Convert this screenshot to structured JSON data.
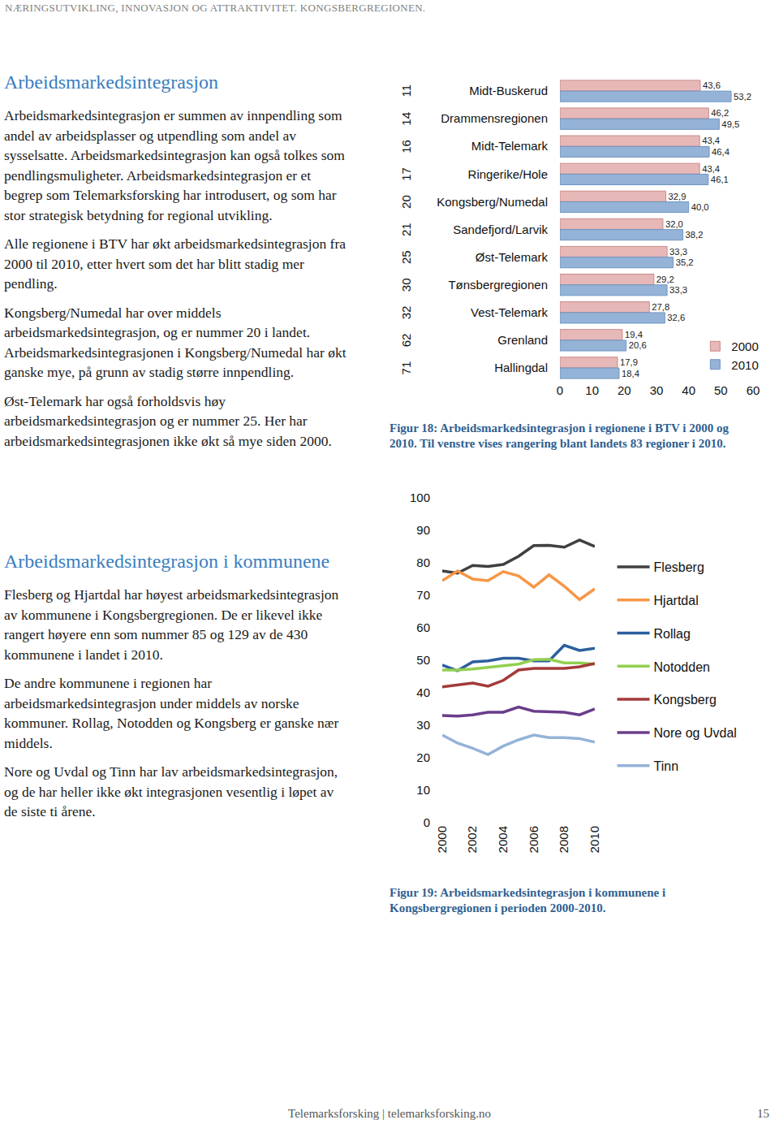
{
  "header": "NÆRINGSUTVIKLING, INNOVASJON OG ATTRAKTIVITET. KONGSBERGREGIONEN.",
  "sections": [
    {
      "heading": "Arbeidsmarkedsintegrasjon",
      "paragraphs": [
        "Arbeidsmarkedsintegrasjon er summen av innpendling som andel av arbeidsplasser og utpendling som andel av sysselsatte. Arbeidsmarkedsintegrasjon kan også tolkes som pendlingsmuligheter. Arbeidsmarkedsintegrasjon er et begrep som Telemarksforsking har introdusert, og som har stor strategisk betydning for regional utvikling.",
        "Alle regionene i BTV har økt arbeidsmarkedsintegrasjon fra 2000 til 2010, etter hvert som det har blitt stadig mer pendling.",
        "Kongsberg/Numedal har over middels arbeidsmarkedsintegrasjon, og er nummer 20 i landet. Arbeidsmarkedsintegrasjonen i Kongsberg/Numedal har økt ganske mye, på grunn av stadig større innpendling.",
        "Øst-Telemark har også forholdsvis høy arbeidsmarkedsintegrasjon og er nummer 25. Her har arbeidsmarkedsintegrasjonen ikke økt så mye siden 2000."
      ]
    },
    {
      "heading": "Arbeidsmarkedsintegrasjon i kommunene",
      "paragraphs": [
        "Flesberg og Hjartdal har høyest arbeidsmarkedsintegrasjon av kommunene i Kongsbergregionen. De er likevel ikke rangert høyere enn som nummer 85 og 129 av de 430 kommunene i landet i 2010.",
        "De andre kommunene i regionen har arbeidsmarkedsintegrasjon under middels av norske kommuner. Rollag, Notodden og Kongsberg er ganske nær middels.",
        "Nore og Uvdal og Tinn har lav arbeidsmarkedsintegrasjon, og de har heller ikke økt integrasjonen vesentlig i løpet av de siste ti årene."
      ]
    }
  ],
  "chart_data": [
    {
      "type": "bar",
      "orientation": "horizontal",
      "categories": [
        "Midt-Buskerud",
        "Drammensregionen",
        "Midt-Telemark",
        "Ringerike/Hole",
        "Kongsberg/Numedal",
        "Sandefjord/Larvik",
        "Øst-Telemark",
        "Tønsbergregionen",
        "Vest-Telemark",
        "Grenland",
        "Hallingdal"
      ],
      "ranks": [
        11,
        14,
        16,
        17,
        20,
        21,
        25,
        30,
        32,
        62,
        71
      ],
      "series": [
        {
          "name": "2000",
          "color": "#e6b9b8",
          "values": [
            43.6,
            46.2,
            43.4,
            43.4,
            32.9,
            32.0,
            33.3,
            29.2,
            27.8,
            19.4,
            17.9
          ],
          "value_labels": [
            "43,6",
            "46,2",
            "43,4",
            "43,4",
            "32,9",
            "32,0",
            "33,3",
            "29,2",
            "27,8",
            "19,4",
            "17,9"
          ]
        },
        {
          "name": "2010",
          "color": "#95b3d7",
          "values": [
            53.2,
            49.5,
            46.4,
            46.1,
            40.0,
            38.2,
            35.2,
            33.3,
            32.6,
            20.6,
            18.4
          ],
          "value_labels": [
            "53,2",
            "49,5",
            "46,4",
            "46,1",
            "40,0",
            "38,2",
            "35,2",
            "33,3",
            "32,6",
            "20,6",
            "18,4"
          ]
        }
      ],
      "xlim": [
        0,
        60
      ],
      "xticks": [
        0,
        10,
        20,
        30,
        40,
        50,
        60
      ],
      "data_labels": true,
      "grid": false,
      "legend": "lower right",
      "caption": "Figur 18: Arbeidsmarkedsintegrasjon i regionene i BTV i 2000 og 2010. Til venstre vises rangering blant landets 83 regioner i 2010."
    },
    {
      "type": "line",
      "x": [
        2000,
        2001,
        2002,
        2003,
        2004,
        2005,
        2006,
        2007,
        2008,
        2009,
        2010
      ],
      "series": [
        {
          "name": "Flesberg",
          "color": "#404040",
          "values": [
            77.5,
            76.8,
            79.2,
            78.9,
            79.5,
            82.0,
            85.3,
            85.4,
            84.8,
            87.0,
            85.0
          ]
        },
        {
          "name": "Hjartdal",
          "color": "#f79646",
          "values": [
            74.5,
            77.5,
            75.0,
            74.5,
            77.3,
            76.0,
            72.5,
            76.3,
            72.8,
            68.7,
            72.0
          ]
        },
        {
          "name": "Rollag",
          "color": "#2c5f9e",
          "values": [
            48.5,
            46.8,
            49.5,
            49.8,
            50.6,
            50.6,
            49.8,
            49.8,
            54.6,
            53.0,
            53.7
          ]
        },
        {
          "name": "Notodden",
          "color": "#92d050",
          "values": [
            47.0,
            47.0,
            47.3,
            47.8,
            48.5,
            48.8,
            50.2,
            50.3,
            49.2,
            49.2,
            48.8
          ]
        },
        {
          "name": "Kongsberg",
          "color": "#a33a3a",
          "values": [
            41.8,
            42.5,
            43.0,
            42.0,
            43.8,
            47.0,
            47.5,
            47.5,
            47.5,
            48.0,
            49.0
          ]
        },
        {
          "name": "Nore og Uvdal",
          "color": "#6a3d8a",
          "values": [
            33.0,
            32.8,
            33.2,
            34.0,
            34.0,
            35.6,
            34.3,
            34.2,
            34.0,
            33.2,
            35.0
          ]
        },
        {
          "name": "Tinn",
          "color": "#95b3d7",
          "values": [
            27.0,
            24.5,
            22.9,
            21.0,
            23.6,
            25.5,
            27.0,
            26.2,
            26.2,
            25.9,
            24.8
          ]
        }
      ],
      "xlim": [
        2000,
        2010
      ],
      "xticks": [
        2000,
        2002,
        2004,
        2006,
        2008,
        2010
      ],
      "ylim": [
        0,
        100
      ],
      "yticks": [
        0,
        10,
        20,
        30,
        40,
        50,
        60,
        70,
        80,
        90,
        100
      ],
      "grid": false,
      "legend": "right",
      "caption": "Figur 19: Arbeidsmarkedsintegrasjon i kommunene i Kongsbergregionen i perioden 2000-2010."
    }
  ],
  "footer": {
    "text": "Telemarksforsking | telemarksforsking.no",
    "page": 15
  }
}
